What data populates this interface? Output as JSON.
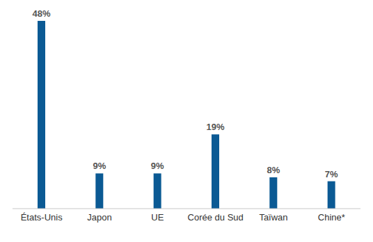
{
  "chart_data": {
    "type": "bar",
    "categories": [
      "États-Unis",
      "Japon",
      "UE",
      "Corée du Sud",
      "Taïwan",
      "Chine*"
    ],
    "values": [
      48,
      9,
      9,
      19,
      8,
      7
    ],
    "value_labels": [
      "48%",
      "9%",
      "9%",
      "19%",
      "8%",
      "7%"
    ],
    "color": "#0b5a94",
    "ylim": [
      0,
      48
    ],
    "data_labels": true,
    "tick_labels": "x",
    "grid": false
  }
}
